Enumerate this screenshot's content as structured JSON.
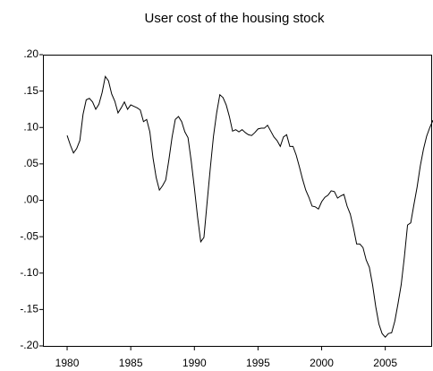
{
  "chart_data": {
    "type": "line",
    "title": "User cost of the housing stock",
    "x": [
      1980,
      1980.25,
      1980.5,
      1980.75,
      1981,
      1981.25,
      1981.5,
      1981.75,
      1982,
      1982.25,
      1982.5,
      1982.75,
      1983,
      1983.25,
      1983.5,
      1983.75,
      1984,
      1984.25,
      1984.5,
      1984.75,
      1985,
      1985.25,
      1985.5,
      1985.75,
      1986,
      1986.25,
      1986.5,
      1986.75,
      1987,
      1987.25,
      1987.5,
      1987.75,
      1988,
      1988.25,
      1988.5,
      1988.75,
      1989,
      1989.25,
      1989.5,
      1989.75,
      1990,
      1990.25,
      1990.5,
      1990.75,
      1991,
      1991.25,
      1991.5,
      1991.75,
      1992,
      1992.25,
      1992.5,
      1992.75,
      1993,
      1993.25,
      1993.5,
      1993.75,
      1994,
      1994.25,
      1994.5,
      1994.75,
      1995,
      1995.25,
      1995.5,
      1995.75,
      1996,
      1996.25,
      1996.5,
      1996.75,
      1997,
      1997.25,
      1997.5,
      1997.75,
      1998,
      1998.25,
      1998.5,
      1998.75,
      1999,
      1999.25,
      1999.5,
      1999.75,
      2000,
      2000.25,
      2000.5,
      2000.75,
      2001,
      2001.25,
      2001.5,
      2001.75,
      2002,
      2002.25,
      2002.5,
      2002.75,
      2003,
      2003.25,
      2003.5,
      2003.75,
      2004,
      2004.25,
      2004.5,
      2004.75,
      2005,
      2005.25,
      2005.5,
      2005.75,
      2006,
      2006.25,
      2006.5,
      2006.75,
      2007,
      2007.25,
      2007.5,
      2007.75,
      2008,
      2008.25,
      2008.5,
      2008.75
    ],
    "series": [
      {
        "color": "#000000",
        "values": [
          0.089,
          0.076,
          0.065,
          0.071,
          0.082,
          0.118,
          0.138,
          0.14,
          0.135,
          0.125,
          0.132,
          0.148,
          0.17,
          0.164,
          0.146,
          0.136,
          0.12,
          0.127,
          0.135,
          0.125,
          0.131,
          0.129,
          0.127,
          0.124,
          0.108,
          0.111,
          0.094,
          0.058,
          0.031,
          0.014,
          0.02,
          0.028,
          0.056,
          0.087,
          0.111,
          0.115,
          0.108,
          0.094,
          0.086,
          0.054,
          0.017,
          -0.023,
          -0.057,
          -0.051,
          -0.003,
          0.044,
          0.088,
          0.12,
          0.145,
          0.141,
          0.131,
          0.115,
          0.095,
          0.097,
          0.094,
          0.097,
          0.093,
          0.09,
          0.089,
          0.093,
          0.098,
          0.099,
          0.099,
          0.103,
          0.095,
          0.087,
          0.082,
          0.074,
          0.087,
          0.09,
          0.074,
          0.074,
          0.062,
          0.046,
          0.029,
          0.014,
          0.004,
          -0.008,
          -0.009,
          -0.012,
          -0.002,
          0.004,
          0.007,
          0.013,
          0.012,
          0.003,
          0.006,
          0.008,
          -0.008,
          -0.019,
          -0.038,
          -0.06,
          -0.06,
          -0.065,
          -0.082,
          -0.092,
          -0.116,
          -0.146,
          -0.17,
          -0.183,
          -0.188,
          -0.183,
          -0.182,
          -0.166,
          -0.142,
          -0.116,
          -0.078,
          -0.034,
          -0.031,
          -0.006,
          0.018,
          0.047,
          0.07,
          0.088,
          0.1,
          0.11
        ]
      }
    ],
    "xlim": [
      1978.1,
      2008.75
    ],
    "xticks": [
      1980,
      1985,
      1990,
      1995,
      2000,
      2005
    ],
    "ylim": [
      -0.2,
      0.2
    ],
    "yticks": [
      {
        "value": 0.2,
        "label": ".20"
      },
      {
        "value": 0.15,
        "label": ".15"
      },
      {
        "value": 0.1,
        "label": ".10"
      },
      {
        "value": 0.05,
        "label": ".05"
      },
      {
        "value": 0,
        "label": ".00"
      },
      {
        "value": -0.05,
        "label": "-.05"
      },
      {
        "value": -0.1,
        "label": "-.10"
      },
      {
        "value": -0.15,
        "label": "-.15"
      },
      {
        "value": -0.2,
        "label": "-.20"
      }
    ],
    "grid": false
  }
}
